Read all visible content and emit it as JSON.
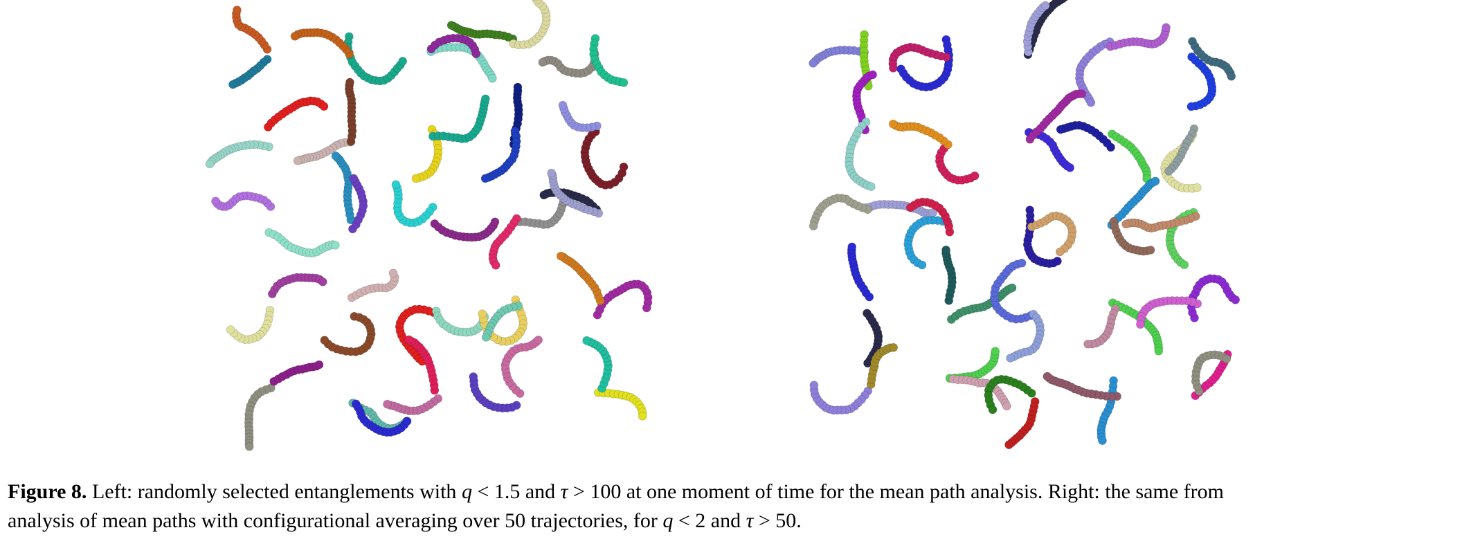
{
  "figure": {
    "panels": [
      {
        "side": "left",
        "description": "entanglements q<1.5, tau>100, single time"
      },
      {
        "side": "right",
        "description": "mean paths with configurational averaging"
      }
    ],
    "left_tangle_colors": [
      [
        "#c75a23",
        "#1f7a99"
      ],
      [
        "#1aa88b",
        "#c4621a"
      ],
      [
        "#7fd9c6",
        "#8d2a9a"
      ],
      [
        "#3f7f1f",
        "#dcd9a0"
      ],
      [
        "#8f8b80",
        "#1fbf8f"
      ],
      [
        "#e01f1f",
        "#98d6c8"
      ],
      [
        "#c9b2b0",
        "#7a3f2a"
      ],
      [
        "#e6d41c",
        "#17a88f"
      ],
      [
        "#0f1f7f",
        "#1f3fbf"
      ],
      [
        "#7a1f2a",
        "#8f8fe0"
      ],
      [
        "#8fe0c8",
        "#b070e0"
      ],
      [
        "#2a8fbf",
        "#6a3fbf"
      ],
      [
        "#2ad0d0",
        "#8a2a8a"
      ],
      [
        "#8f8f8f",
        "#e02a6a"
      ],
      [
        "#2a2a4a",
        "#9f9fcf"
      ],
      [
        "#e0e09f",
        "#a03fa0"
      ],
      [
        "#d0b0b0",
        "#8a4a2a"
      ],
      [
        "#e01f1f",
        "#8fd8c0"
      ],
      [
        "#e8d060",
        "#6fc8b0"
      ],
      [
        "#a02aa0",
        "#d07a1f"
      ],
      [
        "#8f8f80",
        "#8a1f8a"
      ],
      [
        "#5fb8a8",
        "#2a2ad0"
      ],
      [
        "#e01f5a",
        "#c06aa0"
      ],
      [
        "#5a3fbf",
        "#c86a9f"
      ],
      [
        "#e0e01f",
        "#1fbf9f"
      ]
    ],
    "right_tangle_colors": [
      [
        "#7f7fd8",
        "#7fd01f"
      ],
      [
        "#2a2ad0",
        "#c01f6a"
      ],
      [
        "#2a2a4a",
        "#9f9fd8"
      ],
      [
        "#8f7fd8",
        "#b05fd0"
      ],
      [
        "#1f3fe0",
        "#3f6a7f"
      ],
      [
        "#a01fbf",
        "#8fd0c8"
      ],
      [
        "#d01f5a",
        "#e08f1f"
      ],
      [
        "#3f2ad8",
        "#a02aa0"
      ],
      [
        "#1f1f9f",
        "#4fd04f"
      ],
      [
        "#e0e0a0",
        "#8f9f9f"
      ],
      [
        "#9f9fd8",
        "#9f9f8f"
      ],
      [
        "#2aa0d8",
        "#d01f4a"
      ],
      [
        "#2a1f9f",
        "#d0a06a"
      ],
      [
        "#2a8fd0",
        "#8f6a5a"
      ],
      [
        "#5fd05f",
        "#c08a6a"
      ],
      [
        "#2a2a4a",
        "#2a2ad0"
      ],
      [
        "#1f5a5a",
        "#3f8f6a"
      ],
      [
        "#5a6ad8",
        "#8fa0d8"
      ],
      [
        "#4fd04f",
        "#c08aa0"
      ],
      [
        "#8a2ad0",
        "#d05fd0"
      ],
      [
        "#8f7fd8",
        "#a08a2a"
      ],
      [
        "#4fd04f",
        "#d0a0b0"
      ],
      [
        "#2a7f1f",
        "#c01f1f"
      ],
      [
        "#2a8fd0",
        "#8f5a6a"
      ],
      [
        "#e01f8f",
        "#8f8f80"
      ]
    ]
  },
  "caption": {
    "label": "Figure 8.",
    "part1": " Left: randomly selected entanglements with ",
    "var_q1": "q",
    "part2": " < 1.5 and ",
    "var_tau1": "τ",
    "part3": " > 100 at one moment of time for the mean path analysis. Right: the same from",
    "part4": "analysis of mean paths with configurational averaging over 50 trajectories, for ",
    "var_q2": "q",
    "part5": " < 2 and ",
    "var_tau2": "τ",
    "part6": " > 50."
  }
}
